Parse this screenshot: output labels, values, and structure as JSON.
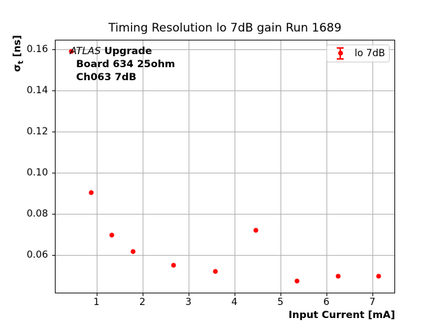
{
  "chart_data": {
    "type": "scatter",
    "title": "Timing Resolution lo 7dB gain Run 1689",
    "xlabel": "Input Current [mA]",
    "ylabel": "σt [ns]",
    "ylabel_parts": {
      "symbol": "σ",
      "subscript": "t",
      "unit": "[ns]"
    },
    "xlim": [
      0.111,
      7.479
    ],
    "ylim": [
      0.0419,
      0.1644
    ],
    "xtick_values": [
      1,
      2,
      3,
      4,
      5,
      6,
      7
    ],
    "xtick_labels": [
      "1",
      "2",
      "3",
      "4",
      "5",
      "6",
      "7"
    ],
    "ytick_values": [
      0.06,
      0.08,
      0.1,
      0.12,
      0.14,
      0.16
    ],
    "ytick_labels": [
      "0.06",
      "0.08",
      "0.10",
      "0.12",
      "0.14",
      "0.16"
    ],
    "grid": true,
    "grid_color": "#b0b0b0",
    "series": [
      {
        "name": "lo 7dB",
        "color": "#ff0000",
        "marker": "circle-errorbar",
        "x": [
          0.45,
          0.89,
          1.34,
          1.79,
          2.68,
          3.58,
          4.46,
          5.36,
          6.25,
          7.14
        ],
        "y": [
          0.1588,
          0.0903,
          0.0698,
          0.0616,
          0.0549,
          0.0519,
          0.072,
          0.0475,
          0.0496,
          0.0496
        ]
      }
    ],
    "legend": {
      "position": "upper right",
      "entries": [
        {
          "label": "lo 7dB",
          "color": "#ff0000",
          "glyph": "errorbar-point"
        }
      ]
    },
    "annotation": {
      "line1_italic": "ATLAS",
      "line1_bold": "Upgrade",
      "line2": "Board 634 25ohm",
      "line3": "Ch063 7dB"
    }
  }
}
